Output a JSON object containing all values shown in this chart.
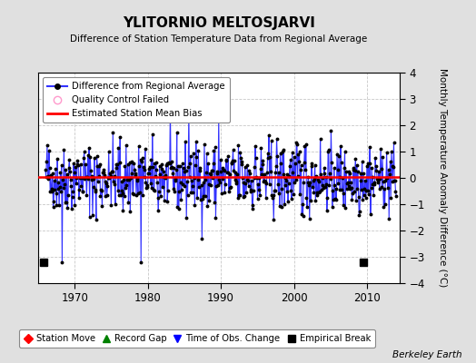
{
  "title": "YLITORNIO MELTOSJARVI",
  "subtitle": "Difference of Station Temperature Data from Regional Average",
  "ylabel": "Monthly Temperature Anomaly Difference (°C)",
  "xlabel_years": [
    1970,
    1980,
    1990,
    2000,
    2010
  ],
  "xlim": [
    1965.0,
    2014.5
  ],
  "ylim": [
    -4,
    4
  ],
  "yticks": [
    -4,
    -3,
    -2,
    -1,
    0,
    1,
    2,
    3,
    4
  ],
  "bias_value": 0.05,
  "empirical_breaks": [
    1965.8,
    2009.5
  ],
  "background_color": "#e0e0e0",
  "plot_bg_color": "#ffffff",
  "line_color": "#3333ff",
  "marker_color": "#000000",
  "bias_color": "#ff0000",
  "grid_color": "#c8c8c8",
  "watermark": "Berkeley Earth",
  "seed": 42,
  "n_points": 588
}
